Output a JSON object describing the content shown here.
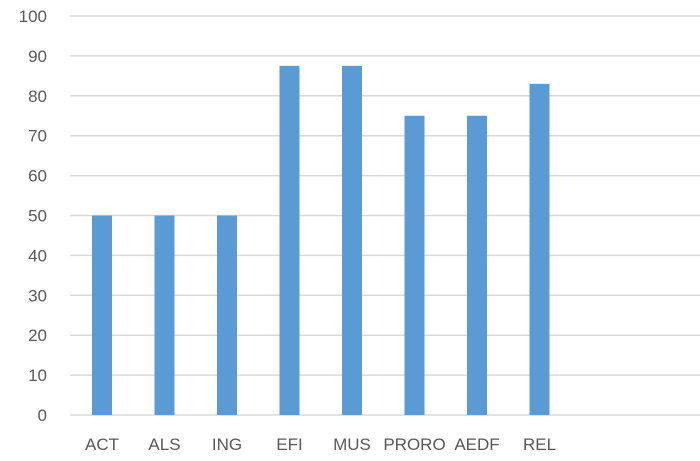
{
  "chart_data": {
    "type": "bar",
    "categories": [
      "ACT",
      "ALS",
      "ING",
      "EFI",
      "MUS",
      "PRORO",
      "AEDF",
      "REL"
    ],
    "values": [
      50,
      50,
      50,
      87.5,
      87.5,
      75,
      75,
      83
    ],
    "yticks": [
      0,
      10,
      20,
      30,
      40,
      50,
      60,
      70,
      80,
      90,
      100
    ],
    "ylim": [
      0,
      100
    ],
    "grid": true,
    "legend": "none",
    "colors": {
      "bar": "#5b9bd5",
      "grid": "#d9d9d9",
      "text": "#595959"
    }
  }
}
